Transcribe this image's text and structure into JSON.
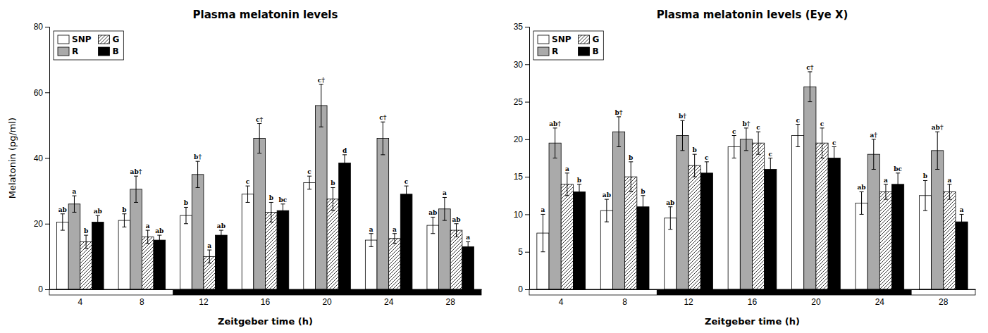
{
  "chart_data": [
    {
      "type": "bar",
      "title": "Plasma melatonin levels",
      "x_label": "Zeitgeber time (h)",
      "y_label": "Melatonin (pg/ml)",
      "categories": [
        "4",
        "8",
        "12",
        "16",
        "20",
        "24",
        "28"
      ],
      "series": [
        {
          "name": "SNP",
          "color": "#ffffff",
          "values": [
            20.5,
            21.0,
            22.5,
            29.0,
            32.5,
            15.0,
            19.5
          ],
          "errors": [
            2.5,
            2.0,
            2.5,
            2.5,
            2.0,
            2.0,
            2.5
          ],
          "annotations": [
            "ab",
            "b",
            "b",
            "c",
            "c",
            "a",
            "ab"
          ]
        },
        {
          "name": "R",
          "color": "#aaaaaa",
          "values": [
            26.0,
            30.5,
            35.0,
            46.0,
            56.0,
            46.0,
            24.5
          ],
          "errors": [
            2.5,
            4.0,
            4.0,
            4.5,
            6.5,
            5.0,
            3.5
          ],
          "annotations": [
            "a",
            "ab†",
            "b†",
            "c†",
            "c†",
            "c†",
            "a"
          ]
        },
        {
          "name": "G",
          "color": "#ffffff",
          "values": [
            14.5,
            16.0,
            10.0,
            23.5,
            27.5,
            15.5,
            18.0
          ],
          "errors": [
            2.0,
            2.0,
            2.0,
            3.0,
            3.5,
            1.5,
            2.0
          ],
          "annotations": [
            "b",
            "a",
            "a",
            "b",
            "b",
            "a",
            "ab"
          ]
        },
        {
          "name": "B",
          "color": "#000000",
          "values": [
            20.5,
            15.0,
            16.5,
            24.0,
            38.5,
            29.0,
            13.0
          ],
          "errors": [
            2.0,
            1.5,
            1.5,
            2.0,
            2.5,
            2.5,
            1.5
          ],
          "annotations": [
            "ab",
            "ab",
            "ab",
            "bc",
            "d",
            "c",
            "a"
          ]
        }
      ],
      "night": [
        "12",
        "28"
      ],
      "ylim": [
        0,
        80
      ],
      "yticks": [
        0,
        20,
        40,
        60,
        80
      ],
      "grid": false,
      "legend": "upper left"
    },
    {
      "type": "bar",
      "title": "Plasma melatonin levels (Eye X)",
      "x_label": "Zeitgeber time (h)",
      "categories": [
        "4",
        "8",
        "12",
        "16",
        "20",
        "24",
        "28"
      ],
      "series": [
        {
          "name": "SNP",
          "color": "#ffffff",
          "values": [
            7.5,
            10.5,
            9.5,
            19.0,
            20.5,
            11.5,
            12.5
          ],
          "errors": [
            2.5,
            1.5,
            1.5,
            1.5,
            1.5,
            1.5,
            2.0
          ],
          "annotations": [
            "a",
            "ab",
            "ab",
            "c",
            "c",
            "ab",
            "b"
          ]
        },
        {
          "name": "R",
          "color": "#aaaaaa",
          "values": [
            19.5,
            21.0,
            20.5,
            20.0,
            27.0,
            18.0,
            18.5
          ],
          "errors": [
            2.0,
            2.0,
            2.0,
            1.5,
            2.0,
            2.0,
            2.5
          ],
          "annotations": [
            "ab†",
            "b†",
            "b†",
            "b†",
            "c†",
            "a†",
            "ab†"
          ]
        },
        {
          "name": "G",
          "color": "#ffffff",
          "values": [
            14.0,
            15.0,
            16.5,
            19.5,
            19.5,
            13.0,
            13.0
          ],
          "errors": [
            1.5,
            2.0,
            1.5,
            1.5,
            2.0,
            1.0,
            1.0
          ],
          "annotations": [
            "a",
            "b",
            "b",
            "c",
            "c",
            "a",
            "a"
          ]
        },
        {
          "name": "B",
          "color": "#000000",
          "values": [
            13.0,
            11.0,
            15.5,
            16.0,
            17.5,
            14.0,
            9.0
          ],
          "errors": [
            1.0,
            1.5,
            1.5,
            1.5,
            1.5,
            1.5,
            1.0
          ],
          "annotations": [
            "b",
            "b",
            "c",
            "c",
            "c",
            "bc",
            "a"
          ]
        }
      ],
      "night": [
        "12",
        "24"
      ],
      "ylim": [
        0,
        35
      ],
      "yticks": [
        0,
        5,
        10,
        15,
        20,
        25,
        30,
        35
      ],
      "grid": false,
      "legend": "upper left"
    }
  ]
}
